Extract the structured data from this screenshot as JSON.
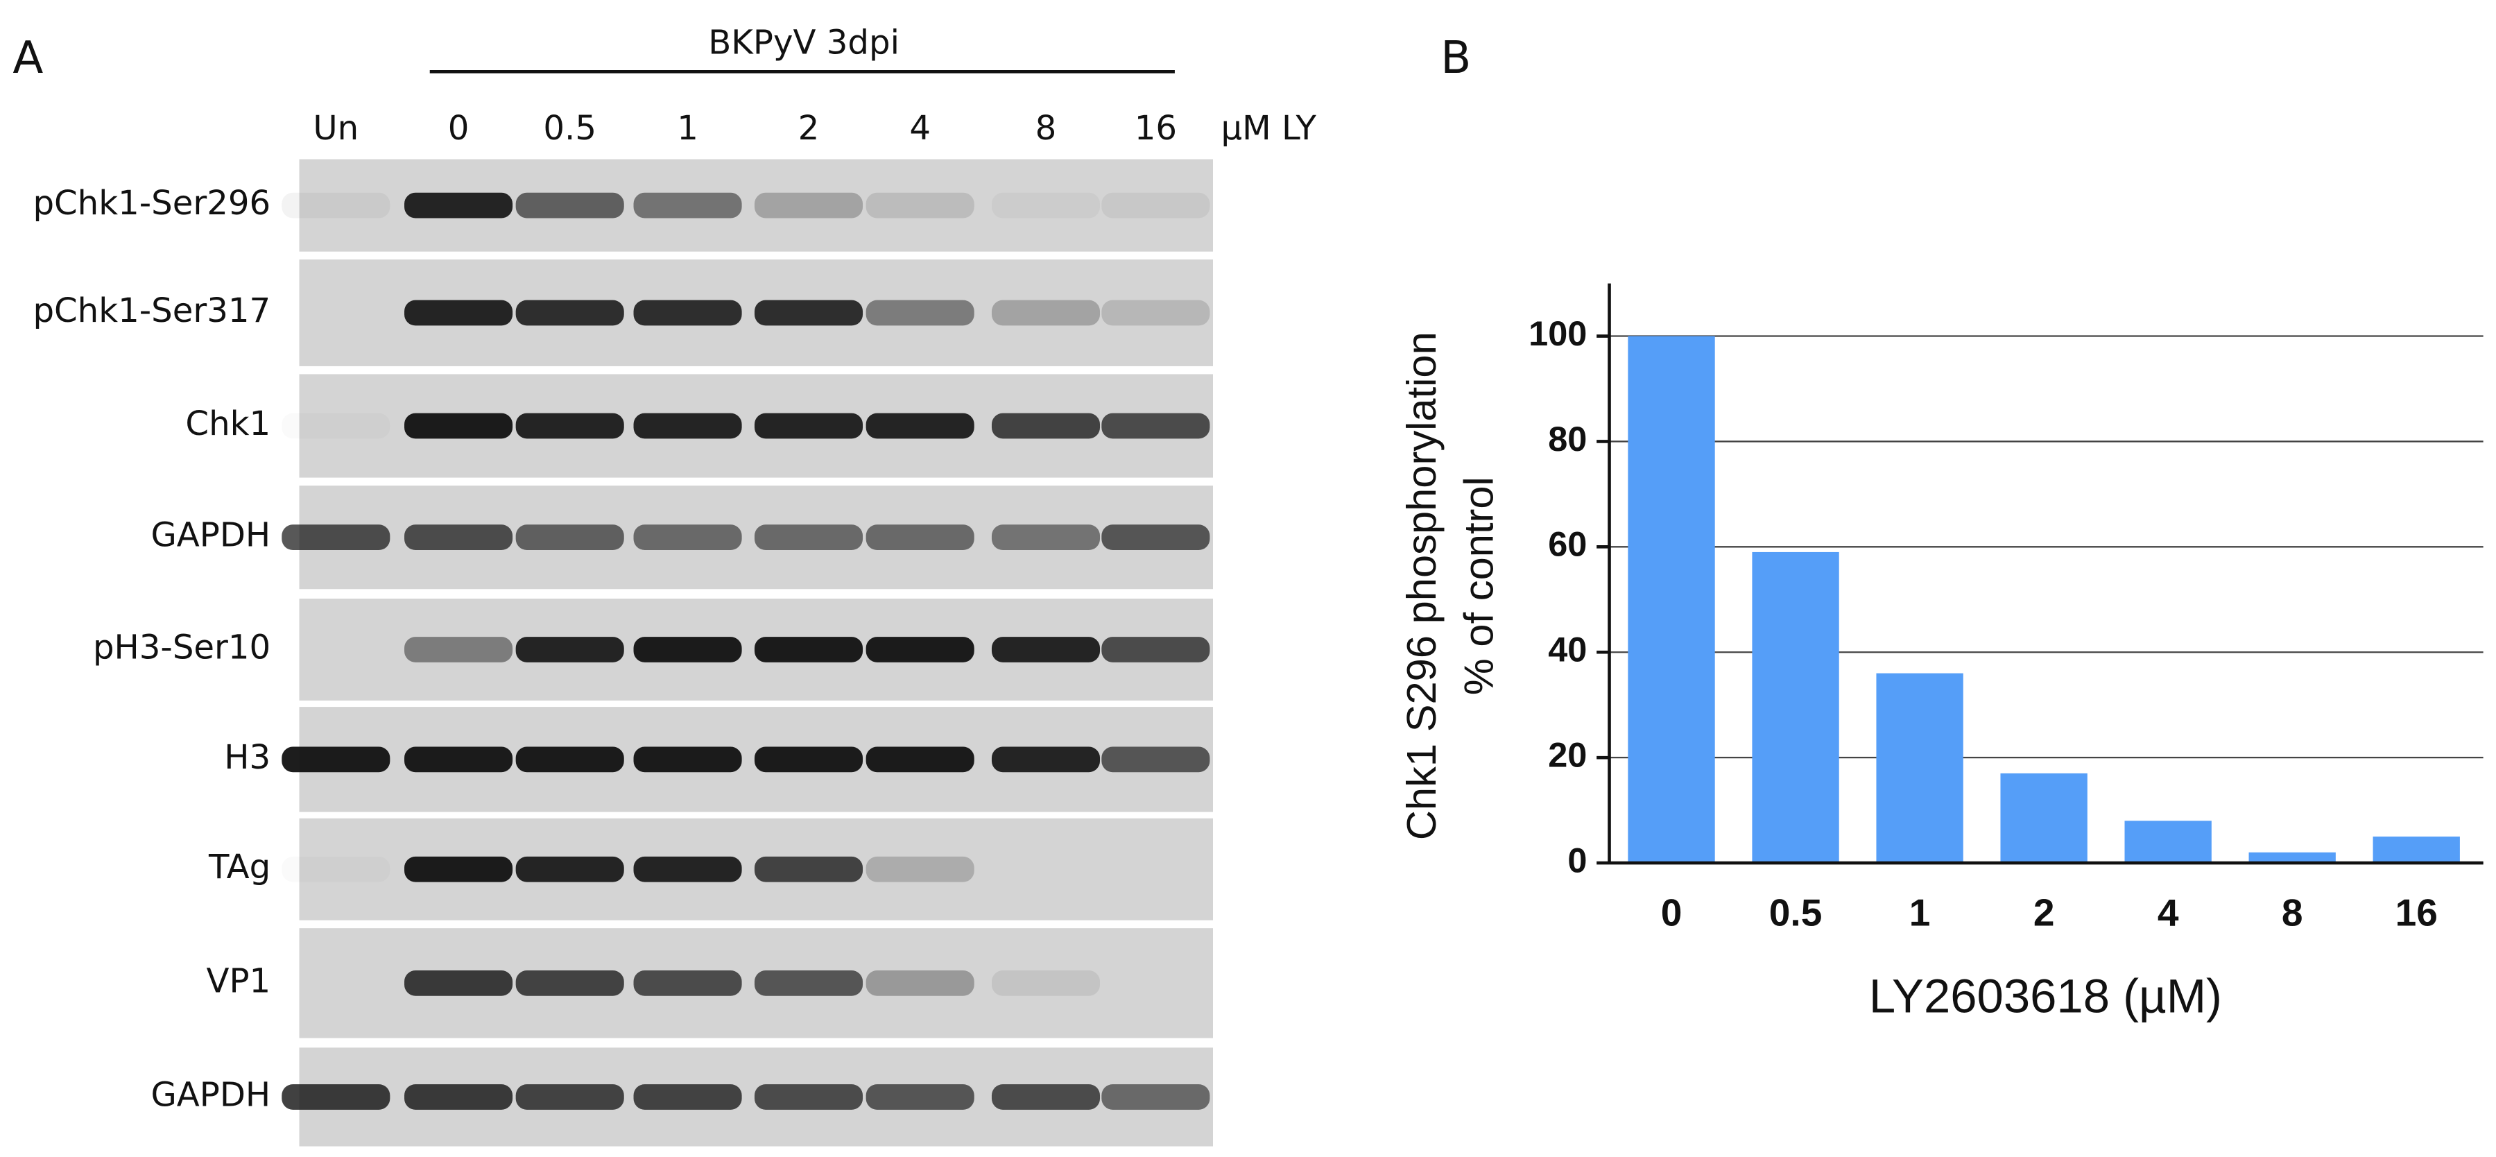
{
  "panel_a": {
    "label": "A",
    "header": "BKPyV 3dpi",
    "lanes": [
      "Un",
      "0",
      "0.5",
      "1",
      "2",
      "4",
      "8",
      "16"
    ],
    "unit": "µM LY",
    "rows": [
      "pChk1-Ser296",
      "pChk1-Ser317",
      "Chk1",
      "GAPDH",
      "pH3-Ser10",
      "H3",
      "TAg",
      "VP1",
      "GAPDH"
    ]
  },
  "panel_b": {
    "label": "B"
  },
  "chart_data": {
    "type": "bar",
    "ylabel": [
      "Chk1 S296 phosphorylation",
      "% of control"
    ],
    "xlabel": "LY2603618 (µM)",
    "categories": [
      "0",
      "0.5",
      "1",
      "2",
      "4",
      "8",
      "16"
    ],
    "values": [
      100,
      59,
      36,
      17,
      8,
      2,
      5
    ],
    "color": "#559ef8",
    "ylim": [
      0,
      110
    ],
    "yticks": [
      0,
      20,
      40,
      60,
      80,
      100
    ],
    "grid": true
  }
}
